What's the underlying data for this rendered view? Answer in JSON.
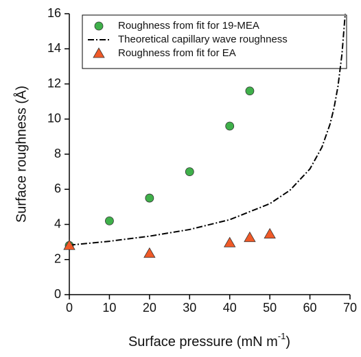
{
  "chart_data": {
    "type": "scatter",
    "x_label": "Surface pressure (mN m",
    "x_label_sup": "-1",
    "x_label_end": ")",
    "y_label": "Surface roughness (Å)",
    "xlim": [
      0,
      70
    ],
    "xticks": [
      0,
      10,
      20,
      30,
      40,
      50,
      60,
      70
    ],
    "ylim": [
      0,
      16
    ],
    "yticks": [
      0,
      2,
      4,
      6,
      8,
      10,
      12,
      14,
      16
    ],
    "legend": "upper-left",
    "series": [
      {
        "name": "Roughness from fit for 19-MEA",
        "color": "#3fb04a",
        "marker": "circle",
        "x": [
          0,
          10,
          20,
          30,
          40,
          45
        ],
        "values": [
          2.8,
          4.2,
          5.5,
          7.0,
          9.6,
          11.6
        ]
      },
      {
        "name": "Theoretical capillary wave roughness",
        "color": "#000000",
        "marker": "dashdot",
        "x": [
          0,
          10,
          20,
          30,
          40,
          50,
          55,
          60,
          63,
          65,
          66,
          67,
          68,
          68.8
        ],
        "values": [
          2.82,
          3.04,
          3.33,
          3.71,
          4.27,
          5.18,
          5.94,
          7.16,
          8.4,
          9.7,
          10.62,
          11.87,
          13.71,
          16.0
        ]
      },
      {
        "name": "Roughness from fit for EA",
        "color": "#f05a28",
        "marker": "triangle",
        "x": [
          0,
          20,
          40,
          45,
          50
        ],
        "values": [
          2.8,
          2.35,
          2.95,
          3.25,
          3.45
        ]
      }
    ]
  }
}
